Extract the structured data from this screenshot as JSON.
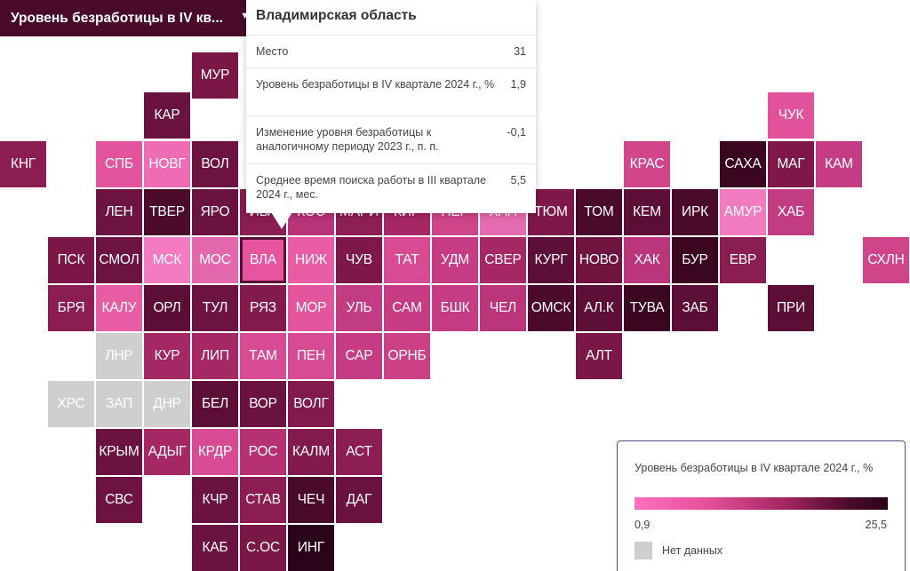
{
  "dropdown": {
    "selected_label": "Уровень безработицы в IV кв...",
    "arrow_icon": "chevron-down-icon"
  },
  "tooltip": {
    "title": "Владимирская область",
    "rows": [
      {
        "label": "Место",
        "value": "31"
      },
      {
        "label": "Уровень безработицы в IV квартале 2024 г., %",
        "value": "1,9"
      },
      {
        "label": "Изменение уровня безработицы к аналогичному периоду 2023 г., п. п.",
        "value": "-0,1"
      },
      {
        "label": "Среднее время поиска работы в III квартале 2024 г.,  мес.",
        "value": "5,5"
      }
    ]
  },
  "legend": {
    "title": "Уровень безработицы в IV квартале 2024 г., %",
    "min_label": "0,9",
    "max_label": "25,5",
    "no_data_label": "Нет данных",
    "gradient_colors": [
      "#ff6fc0",
      "#e24f96",
      "#a2245e",
      "#4a0a2a",
      "#2a0418"
    ],
    "no_data_color": "#cfcfcf"
  },
  "selected_region": "ВЛА",
  "regions": [
    {
      "label": "МУР",
      "color": "#7a1747"
    },
    {
      "label": "КАР",
      "color": "#6a1240"
    },
    {
      "label": "ЧУК",
      "color": "#e2529a"
    },
    {
      "label": "КНГ",
      "color": "#8c1d52"
    },
    {
      "label": "СПБ",
      "color": "#e2559c"
    },
    {
      "label": "НОВГ",
      "color": "#ee6cb4"
    },
    {
      "label": "ВОЛ",
      "color": "#6c1342"
    },
    {
      "label": "КРАС",
      "color": "#d1468a"
    },
    {
      "label": "САХА",
      "color": "#3a0620"
    },
    {
      "label": "МАГ",
      "color": "#7f1849"
    },
    {
      "label": "КАМ",
      "color": "#c63c82"
    },
    {
      "label": "ЛЕН",
      "color": "#6e1443"
    },
    {
      "label": "ТВЕР",
      "color": "#4d0b2c"
    },
    {
      "label": "ЯРО",
      "color": "#6a1240"
    },
    {
      "label": "ИВА",
      "color": "#8a1d51"
    },
    {
      "label": "КОС",
      "color": "#b83378"
    },
    {
      "label": "МАРИ",
      "color": "#8e1f55"
    },
    {
      "label": "КИР",
      "color": "#a52763"
    },
    {
      "label": "ПЕР",
      "color": "#d04489"
    },
    {
      "label": "ХАН",
      "color": "#e66aaf"
    },
    {
      "label": "ТЮМ",
      "color": "#7e1849"
    },
    {
      "label": "ТОМ",
      "color": "#4a0a2a"
    },
    {
      "label": "КЕМ",
      "color": "#5c0e36"
    },
    {
      "label": "ИРК",
      "color": "#4a0a2a"
    },
    {
      "label": "АМУР",
      "color": "#f07cbf"
    },
    {
      "label": "ХАБ",
      "color": "#c23c81"
    },
    {
      "label": "ПСК",
      "color": "#7a1747"
    },
    {
      "label": "СМОЛ",
      "color": "#6c1342"
    },
    {
      "label": "МСК",
      "color": "#f47ac2"
    },
    {
      "label": "МОС",
      "color": "#e468ac"
    },
    {
      "label": "ВЛА",
      "color": "#e6559e"
    },
    {
      "label": "НИЖ",
      "color": "#e85ca4"
    },
    {
      "label": "ЧУВ",
      "color": "#7e1849"
    },
    {
      "label": "ТАТ",
      "color": "#d74b92"
    },
    {
      "label": "УДМ",
      "color": "#c63c82"
    },
    {
      "label": "СВЕР",
      "color": "#a52763"
    },
    {
      "label": "КУРГ",
      "color": "#5e0f38"
    },
    {
      "label": "НОВО",
      "color": "#70143f"
    },
    {
      "label": "ХАК",
      "color": "#ba3579"
    },
    {
      "label": "БУР",
      "color": "#3a0620"
    },
    {
      "label": "ЕВР",
      "color": "#8a1d51"
    },
    {
      "label": "СХЛН",
      "color": "#d04489"
    },
    {
      "label": "БРЯ",
      "color": "#8c1d52"
    },
    {
      "label": "КАЛУ",
      "color": "#e85ca4"
    },
    {
      "label": "ОРЛ",
      "color": "#5c0e36"
    },
    {
      "label": "ТУЛ",
      "color": "#6c1342"
    },
    {
      "label": "РЯЗ",
      "color": "#831a4e"
    },
    {
      "label": "МОР",
      "color": "#e2559c"
    },
    {
      "label": "УЛЬ",
      "color": "#c23c81"
    },
    {
      "label": "САМ",
      "color": "#c63c82"
    },
    {
      "label": "БШК",
      "color": "#c63c82"
    },
    {
      "label": "ЧЕЛ",
      "color": "#ba3579"
    },
    {
      "label": "ОМСК",
      "color": "#4d0b2c"
    },
    {
      "label": "АЛ.К",
      "color": "#5e0f38"
    },
    {
      "label": "ТУВА",
      "color": "#3a0620"
    },
    {
      "label": "ЗАБ",
      "color": "#5c0e36"
    },
    {
      "label": "ПРИ",
      "color": "#5c0e36"
    },
    {
      "label": "ЛНР",
      "color": "#cfcfcf"
    },
    {
      "label": "КУР",
      "color": "#a52763"
    },
    {
      "label": "ЛИП",
      "color": "#a52763"
    },
    {
      "label": "ТАМ",
      "color": "#d74b92"
    },
    {
      "label": "ПЕН",
      "color": "#d74b92"
    },
    {
      "label": "САР",
      "color": "#c63c82"
    },
    {
      "label": "ОРНБ",
      "color": "#cc4186"
    },
    {
      "label": "АЛТ",
      "color": "#7a1747"
    },
    {
      "label": "ХРС",
      "color": "#cfcfcf"
    },
    {
      "label": "ЗАП",
      "color": "#cfcfcf"
    },
    {
      "label": "ДНР",
      "color": "#cfcfcf"
    },
    {
      "label": "БЕЛ",
      "color": "#5c0e36"
    },
    {
      "label": "ВОР",
      "color": "#6a1240"
    },
    {
      "label": "ВОЛГ",
      "color": "#831a4e"
    },
    {
      "label": "КРЫМ",
      "color": "#6a1240"
    },
    {
      "label": "АДЫГ",
      "color": "#a52763"
    },
    {
      "label": "КРДР",
      "color": "#d74b92"
    },
    {
      "label": "РОС",
      "color": "#b53174"
    },
    {
      "label": "КАЛМ",
      "color": "#831a4e"
    },
    {
      "label": "АСТ",
      "color": "#8c1d52"
    },
    {
      "label": "СВС",
      "color": "#6c1342"
    },
    {
      "label": "КЧР",
      "color": "#6a1240"
    },
    {
      "label": "СТАВ",
      "color": "#8c1d52"
    },
    {
      "label": "ЧЕЧ",
      "color": "#4a0a2a"
    },
    {
      "label": "ДАГ",
      "color": "#6a1240"
    },
    {
      "label": "КАБ",
      "color": "#6a1240"
    },
    {
      "label": "С.ОС",
      "color": "#7a1747"
    },
    {
      "label": "ИНГ",
      "color": "#2a0418"
    }
  ]
}
